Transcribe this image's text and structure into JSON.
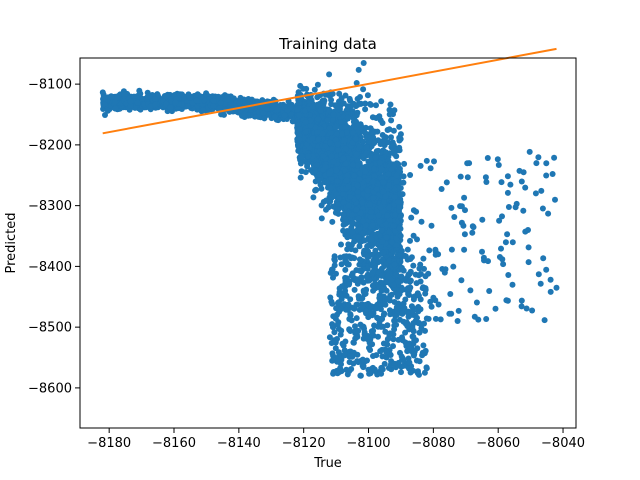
{
  "chart_data": {
    "type": "scatter",
    "title": "Training data",
    "xlabel": "True",
    "ylabel": "Predicted",
    "xlim": [
      -8189,
      -8036
    ],
    "ylim": [
      -8666,
      -8057
    ],
    "xticks": [
      -8180,
      -8160,
      -8140,
      -8120,
      -8100,
      -8080,
      -8060,
      -8040
    ],
    "yticks": [
      -8100,
      -8200,
      -8300,
      -8400,
      -8500,
      -8600
    ],
    "xtick_labels": [
      "−8180",
      "−8160",
      "−8140",
      "−8120",
      "−8100",
      "−8080",
      "−8060",
      "−8040"
    ],
    "ytick_labels": [
      "−8100",
      "−8200",
      "−8300",
      "−8400",
      "−8500",
      "−8600"
    ],
    "grid": false,
    "colors": {
      "points": "#1f77b4",
      "line": "#ff7f0e"
    },
    "series": [
      {
        "type": "scatter",
        "description_points": [
          [
            -8182,
            -8130
          ],
          [
            -8181,
            -8125
          ],
          [
            -8180,
            -8135
          ],
          [
            -8179,
            -8128
          ],
          [
            -8178,
            -8132
          ],
          [
            -8177,
            -8126
          ],
          [
            -8176,
            -8134
          ],
          [
            -8175,
            -8129
          ],
          [
            -8174,
            -8133
          ],
          [
            -8173,
            -8127
          ],
          [
            -8172,
            -8131
          ],
          [
            -8171,
            -8136
          ],
          [
            -8170,
            -8128
          ],
          [
            -8169,
            -8133
          ],
          [
            -8168,
            -8130
          ],
          [
            -8167,
            -8126
          ],
          [
            -8166,
            -8135
          ],
          [
            -8165,
            -8132
          ],
          [
            -8164,
            -8129
          ],
          [
            -8163,
            -8134
          ],
          [
            -8162,
            -8128
          ],
          [
            -8161,
            -8133
          ],
          [
            -8160,
            -8131
          ],
          [
            -8159,
            -8136
          ],
          [
            -8158,
            -8129
          ],
          [
            -8157,
            -8134
          ],
          [
            -8156,
            -8132
          ],
          [
            -8155,
            -8138
          ],
          [
            -8154,
            -8130
          ],
          [
            -8153,
            -8140
          ],
          [
            -8152,
            -8136
          ],
          [
            -8151,
            -8142
          ],
          [
            -8150,
            -8135
          ],
          [
            -8149,
            -8145
          ],
          [
            -8148,
            -8140
          ],
          [
            -8147,
            -8150
          ],
          [
            -8146,
            -8142
          ],
          [
            -8145,
            -8148
          ],
          [
            -8144,
            -8155
          ],
          [
            -8143,
            -8150
          ],
          [
            -8142,
            -8160
          ],
          [
            -8141,
            -8152
          ],
          [
            -8140,
            -8158
          ],
          [
            -8139,
            -8165
          ],
          [
            -8138,
            -8160
          ],
          [
            -8137,
            -8170
          ],
          [
            -8136,
            -8162
          ],
          [
            -8135,
            -8168
          ],
          [
            -8134,
            -8175
          ],
          [
            -8133,
            -8170
          ],
          [
            -8132,
            -8178
          ],
          [
            -8131,
            -8185
          ],
          [
            -8130,
            -8180
          ],
          [
            -8129,
            -8190
          ],
          [
            -8128,
            -8195
          ],
          [
            -8127,
            -8185
          ],
          [
            -8126,
            -8200
          ],
          [
            -8125,
            -8205
          ],
          [
            -8124,
            -8195
          ],
          [
            -8123,
            -8210
          ],
          [
            -8122,
            -8220
          ],
          [
            -8121,
            -8215
          ],
          [
            -8120,
            -8230
          ],
          [
            -8119,
            -8240
          ],
          [
            -8118,
            -8225
          ],
          [
            -8117,
            -8250
          ],
          [
            -8116,
            -8260
          ],
          [
            -8115,
            -8245
          ],
          [
            -8114,
            -8270
          ],
          [
            -8113,
            -8280
          ],
          [
            -8112,
            -8265
          ],
          [
            -8111,
            -8290
          ],
          [
            -8110,
            -8300
          ],
          [
            -8109,
            -8285
          ],
          [
            -8108,
            -8310
          ],
          [
            -8107,
            -8320
          ],
          [
            -8106,
            -8305
          ],
          [
            -8105,
            -8330
          ],
          [
            -8104,
            -8340
          ],
          [
            -8103,
            -8325
          ],
          [
            -8102,
            -8350
          ],
          [
            -8101,
            -8360
          ],
          [
            -8100,
            -8345
          ],
          [
            -8099,
            -8370
          ],
          [
            -8098,
            -8380
          ],
          [
            -8097,
            -8365
          ],
          [
            -8096,
            -8390
          ],
          [
            -8095,
            -8400
          ],
          [
            -8094,
            -8385
          ],
          [
            -8093,
            -8410
          ]
        ]
      },
      {
        "type": "line",
        "x": [
          -8182,
          -8042
        ],
        "y": [
          -8181,
          -8042
        ]
      }
    ]
  }
}
